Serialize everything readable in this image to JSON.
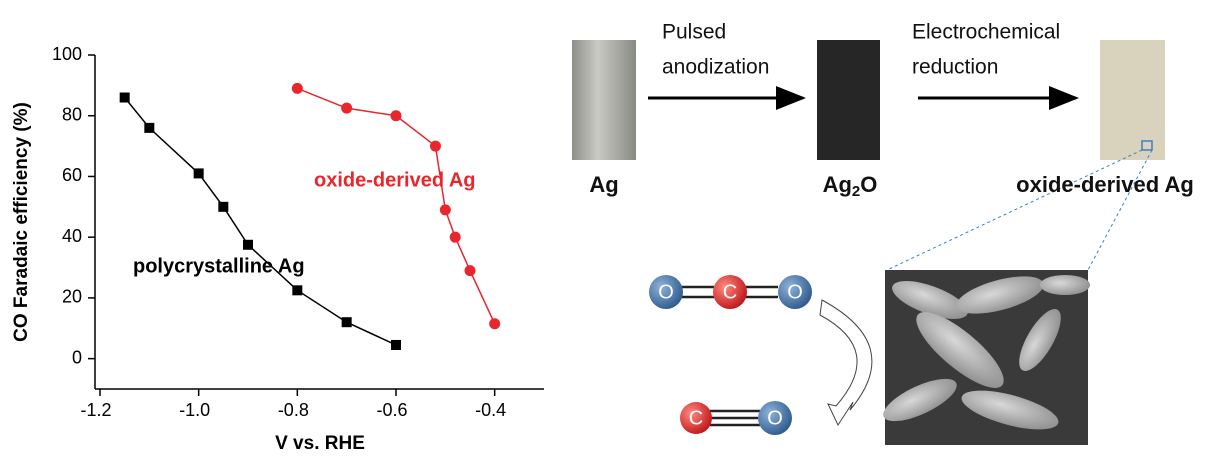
{
  "chart_data": {
    "type": "line",
    "x_label": "V vs. RHE",
    "y_label": "CO Faradaic efficiency (%)",
    "xlim": [
      -1.2,
      -0.3
    ],
    "ylim": [
      -10,
      100
    ],
    "xticks": [
      -1.2,
      {
        "value": -1,
        "label": "-1.0"
      },
      -0.8,
      -0.6,
      -0.4
    ],
    "yticks": [
      0,
      20,
      40,
      60,
      80,
      100
    ],
    "series": [
      {
        "name": "polycrystalline Ag",
        "color": "#000000",
        "marker": "square",
        "x": [
          -1.15,
          -1.1,
          -1.0,
          -0.95,
          -0.9,
          -0.8,
          -0.7,
          -0.6
        ],
        "values": [
          86,
          76,
          61,
          50,
          37.5,
          22.5,
          12,
          4.5
        ]
      },
      {
        "name": "oxide-derived Ag",
        "color": "#e8262b",
        "marker": "circle",
        "x": [
          -0.8,
          -0.7,
          -0.6,
          -0.52,
          -0.5,
          -0.48,
          -0.45,
          -0.4
        ],
        "values": [
          89,
          82.5,
          80,
          70,
          49,
          40,
          29,
          11.5
        ]
      }
    ]
  },
  "diagram": {
    "samples": [
      {
        "label": "Ag"
      },
      {
        "label": [
          "Ag",
          "2",
          "O"
        ]
      },
      {
        "label": "oxide-derived Ag"
      }
    ],
    "steps": [
      {
        "label": [
          "Pulsed",
          "anodization"
        ]
      },
      {
        "label": [
          "Electrochemical",
          "reduction"
        ]
      }
    ],
    "molecules": [
      {
        "atoms": [
          "O",
          "C",
          "O"
        ]
      },
      {
        "atoms": [
          "C",
          "O"
        ]
      }
    ]
  }
}
